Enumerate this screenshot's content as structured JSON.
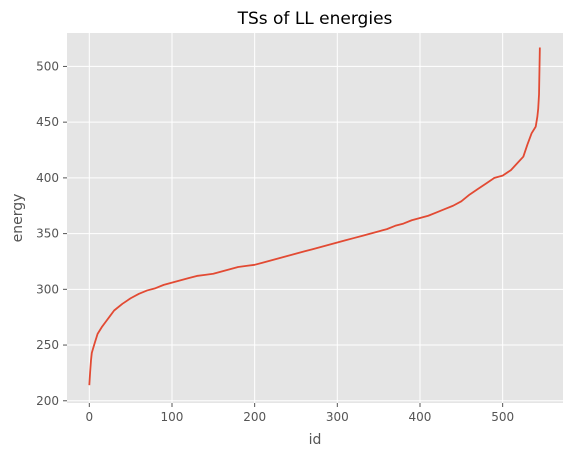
{
  "chart_data": {
    "type": "line",
    "title": "TSs of LL energies",
    "xlabel": "id",
    "ylabel": "energy",
    "xlim": [
      -27,
      573
    ],
    "ylim": [
      198,
      530
    ],
    "xticks": [
      0,
      100,
      200,
      300,
      400,
      500
    ],
    "yticks": [
      200,
      250,
      300,
      350,
      400,
      450,
      500
    ],
    "grid": true,
    "colors": {
      "background": "#e5e5e5",
      "grid": "#ffffff",
      "line": "#e24a33"
    },
    "series": [
      {
        "x": [
          0,
          1,
          2,
          3,
          5,
          7,
          10,
          15,
          20,
          25,
          30,
          40,
          50,
          60,
          70,
          80,
          90,
          100,
          110,
          120,
          130,
          140,
          150,
          160,
          170,
          180,
          190,
          200,
          210,
          220,
          230,
          240,
          250,
          260,
          270,
          280,
          290,
          300,
          310,
          320,
          330,
          340,
          350,
          360,
          370,
          380,
          390,
          400,
          410,
          420,
          430,
          440,
          450,
          460,
          470,
          480,
          490,
          500,
          510,
          520,
          525,
          530,
          535,
          540,
          542,
          543,
          544,
          545
        ],
        "values": [
          214,
          226,
          236,
          243,
          248,
          253,
          260,
          266,
          271,
          276,
          281,
          287,
          292,
          296,
          299,
          301,
          304,
          306,
          308,
          310,
          312,
          313,
          314,
          316,
          318,
          320,
          321,
          322,
          324,
          326,
          328,
          330,
          332,
          334,
          336,
          338,
          340,
          342,
          344,
          346,
          348,
          350,
          352,
          354,
          357,
          359,
          362,
          364,
          366,
          369,
          372,
          375,
          379,
          385,
          390,
          395,
          400,
          402,
          407,
          415,
          419,
          430,
          440,
          446,
          455,
          462,
          475,
          517
        ]
      }
    ]
  }
}
